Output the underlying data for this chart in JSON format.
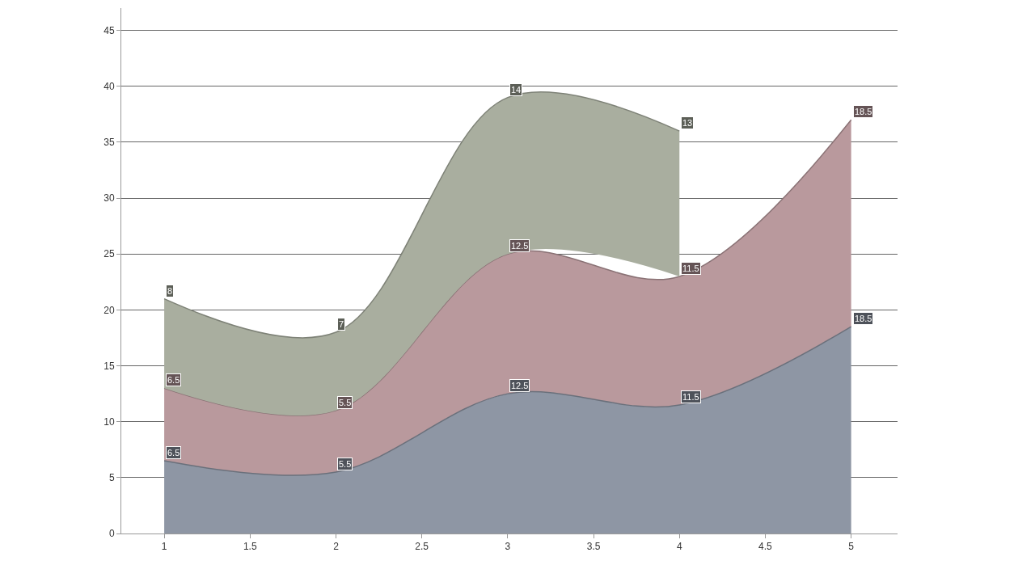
{
  "chart_data": {
    "type": "area",
    "stacked": true,
    "x": [
      1,
      2,
      3,
      4,
      5
    ],
    "series": [
      {
        "color": "#8e96a4",
        "values": [
          6.5,
          5.5,
          12.5,
          11.5,
          18.5
        ]
      },
      {
        "color": "#b9999d",
        "values": [
          6.5,
          5.5,
          12.5,
          11.5,
          18.5
        ]
      },
      {
        "color": "#a9ae9f",
        "values": [
          8,
          7,
          14,
          13,
          null
        ]
      }
    ],
    "xlim": [
      0.75,
      5.27
    ],
    "xticks": [
      1,
      1.5,
      2,
      2.5,
      3,
      3.5,
      4,
      4.5,
      5
    ],
    "ylim": [
      0,
      47
    ],
    "yticks": [
      0,
      5,
      10,
      15,
      20,
      25,
      30,
      35,
      40,
      45
    ],
    "grid": "y",
    "data_labels": true
  }
}
